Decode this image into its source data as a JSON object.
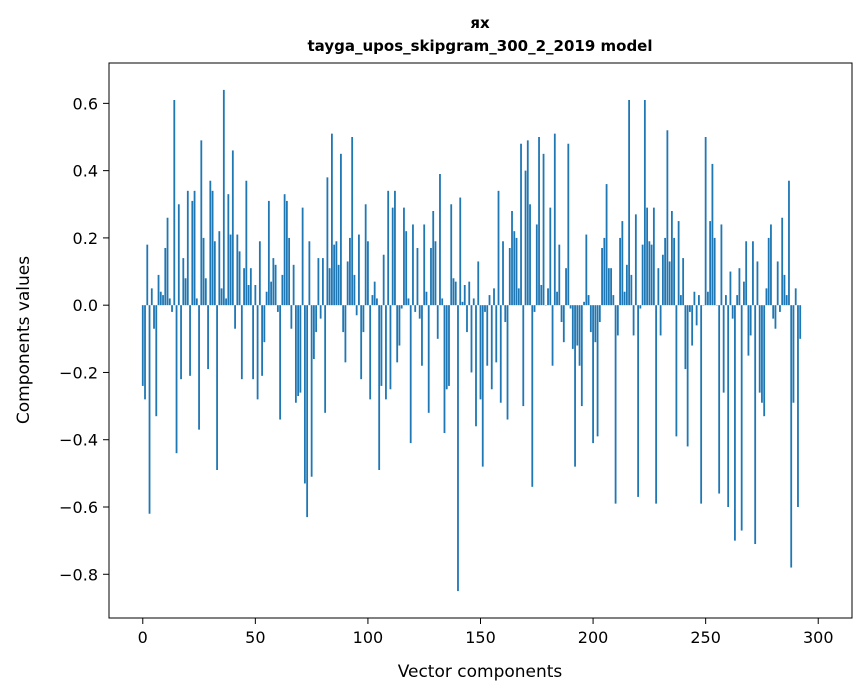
{
  "chart_data": {
    "type": "bar",
    "title_line1": "ях",
    "title_line2": "tayga_upos_skipgram_300_2_2019 model",
    "xlabel": "Vector components",
    "ylabel": "Components values",
    "xlim": [
      -15,
      315
    ],
    "ylim": [
      -0.93,
      0.72
    ],
    "xticks": [
      0,
      50,
      100,
      150,
      200,
      250,
      300
    ],
    "xtick_labels": [
      "0",
      "50",
      "100",
      "150",
      "200",
      "250",
      "300"
    ],
    "yticks": [
      -0.8,
      -0.6,
      -0.4,
      -0.2,
      0.0,
      0.2,
      0.4,
      0.6
    ],
    "ytick_labels": [
      "−0.8",
      "−0.6",
      "−0.4",
      "−0.2",
      "0.0",
      "0.2",
      "0.4",
      "0.6"
    ],
    "bar_color": "#1f77b4",
    "values": [
      -0.24,
      -0.28,
      0.18,
      -0.62,
      0.05,
      -0.07,
      -0.33,
      0.09,
      0.04,
      0.03,
      0.17,
      0.26,
      0.02,
      -0.02,
      0.61,
      -0.44,
      0.3,
      -0.22,
      0.14,
      0.08,
      0.34,
      -0.21,
      0.31,
      0.34,
      0.02,
      -0.37,
      0.49,
      0.2,
      0.08,
      -0.19,
      0.37,
      0.34,
      0.19,
      -0.49,
      0.22,
      0.05,
      0.64,
      0.02,
      0.33,
      0.21,
      0.46,
      -0.07,
      0.21,
      0.16,
      -0.22,
      0.11,
      0.37,
      0.06,
      0.11,
      -0.22,
      0.06,
      -0.28,
      0.19,
      -0.21,
      -0.11,
      0.04,
      0.31,
      0.07,
      0.14,
      0.12,
      -0.02,
      -0.34,
      0.09,
      0.33,
      0.31,
      0.2,
      -0.07,
      0.12,
      -0.29,
      -0.27,
      -0.26,
      0.29,
      -0.53,
      -0.63,
      0.19,
      -0.51,
      -0.16,
      -0.08,
      0.14,
      -0.04,
      0.14,
      -0.32,
      0.38,
      0.11,
      0.51,
      0.18,
      0.19,
      0.12,
      0.45,
      -0.08,
      -0.17,
      0.13,
      0.2,
      0.5,
      0.09,
      -0.03,
      0.21,
      -0.22,
      -0.08,
      0.3,
      0.19,
      -0.28,
      0.03,
      0.07,
      0.02,
      -0.49,
      -0.24,
      0.15,
      -0.28,
      0.34,
      -0.25,
      0.29,
      0.34,
      -0.17,
      -0.12,
      -0.01,
      0.29,
      0.22,
      0.02,
      -0.41,
      0.24,
      -0.02,
      0.17,
      -0.04,
      -0.18,
      0.24,
      0.04,
      -0.32,
      0.17,
      0.28,
      0.19,
      -0.1,
      0.39,
      0.02,
      -0.38,
      -0.25,
      -0.24,
      0.3,
      0.08,
      0.07,
      -0.85,
      0.32,
      0.01,
      0.06,
      -0.08,
      0.07,
      -0.2,
      0.02,
      -0.36,
      0.13,
      -0.28,
      -0.48,
      -0.02,
      -0.18,
      0.03,
      -0.25,
      0.05,
      -0.17,
      0.34,
      -0.29,
      0.19,
      -0.05,
      -0.34,
      0.17,
      0.28,
      0.22,
      0.2,
      0.05,
      0.48,
      -0.3,
      0.4,
      0.49,
      0.3,
      -0.54,
      -0.02,
      0.24,
      0.5,
      0.06,
      0.45,
      0.0,
      0.05,
      0.29,
      -0.18,
      0.51,
      0.04,
      0.18,
      -0.05,
      -0.11,
      0.11,
      0.48,
      -0.01,
      -0.13,
      -0.48,
      -0.12,
      -0.18,
      -0.3,
      0.01,
      0.21,
      0.03,
      -0.08,
      -0.41,
      -0.11,
      -0.39,
      -0.05,
      0.17,
      0.2,
      0.36,
      0.11,
      0.11,
      0.03,
      -0.59,
      -0.09,
      0.2,
      0.25,
      0.04,
      0.12,
      0.61,
      0.09,
      -0.09,
      0.27,
      -0.57,
      -0.01,
      0.18,
      0.61,
      0.29,
      0.19,
      0.18,
      0.29,
      -0.59,
      0.11,
      -0.09,
      0.15,
      0.2,
      0.52,
      0.13,
      0.28,
      0.2,
      -0.39,
      0.25,
      0.03,
      0.14,
      -0.19,
      -0.42,
      -0.02,
      -0.12,
      0.04,
      -0.06,
      0.03,
      -0.59,
      0.0,
      0.5,
      0.04,
      0.25,
      0.42,
      0.2,
      0.0,
      -0.56,
      0.24,
      -0.26,
      0.03,
      -0.6,
      0.1,
      -0.04,
      -0.7,
      0.03,
      0.11,
      -0.67,
      0.07,
      0.19,
      -0.15,
      -0.09,
      0.19,
      -0.71,
      0.13,
      -0.26,
      -0.29,
      -0.33,
      0.05,
      0.2,
      0.24,
      -0.04,
      -0.07,
      0.13,
      -0.02,
      0.26,
      0.09,
      0.03,
      0.37,
      -0.78,
      -0.29,
      0.05,
      -0.6,
      -0.1
    ]
  }
}
